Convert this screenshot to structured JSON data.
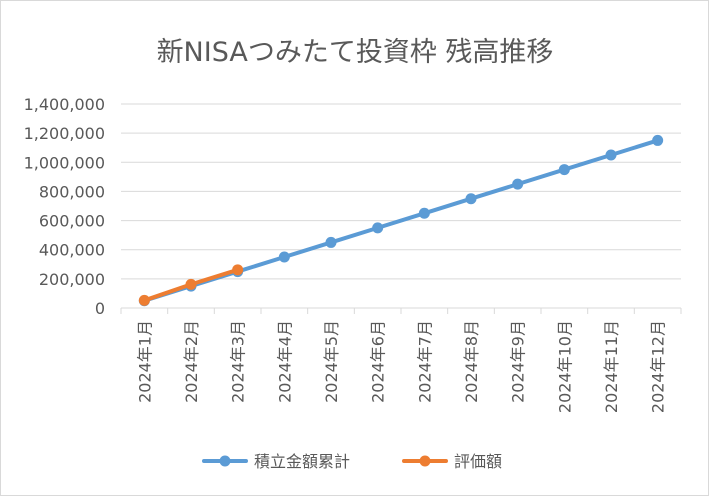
{
  "chart_data": {
    "type": "line",
    "title": "新NISAつみたて投資枠 残高推移",
    "xlabel": "",
    "ylabel": "",
    "categories": [
      "2024年1月",
      "2024年2月",
      "2024年3月",
      "2024年4月",
      "2024年5月",
      "2024年6月",
      "2024年7月",
      "2024年8月",
      "2024年9月",
      "2024年10月",
      "2024年11月",
      "2024年12月"
    ],
    "series": [
      {
        "name": "積立金額累計",
        "color": "#5b9bd5",
        "values": [
          50000,
          150000,
          250000,
          350000,
          450000,
          550000,
          650000,
          750000,
          850000,
          950000,
          1050000,
          1150000
        ]
      },
      {
        "name": "評価額",
        "color": "#ed7d31",
        "values": [
          52000,
          162000,
          262000,
          null,
          null,
          null,
          null,
          null,
          null,
          null,
          null,
          null
        ]
      }
    ],
    "ylim": [
      0,
      1400000
    ],
    "y_ticks": [
      0,
      200000,
      400000,
      600000,
      800000,
      1000000,
      1200000,
      1400000
    ],
    "y_tick_labels": [
      "0",
      "200,000",
      "400,000",
      "600,000",
      "800,000",
      "1,000,000",
      "1,200,000",
      "1,400,000"
    ],
    "grid": true,
    "legend_position": "bottom"
  }
}
